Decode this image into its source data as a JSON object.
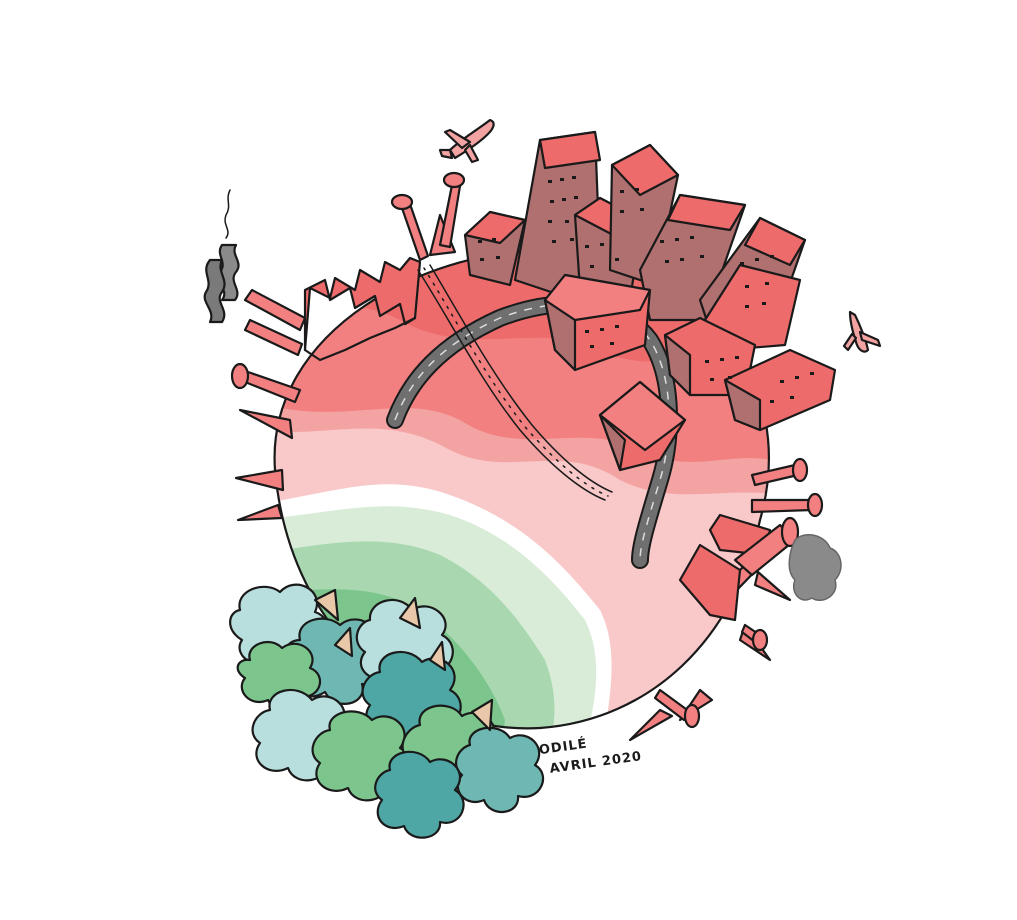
{
  "illustration": {
    "signature": {
      "name": "ODILÉ",
      "date": "AVRIL 2020"
    }
  }
}
